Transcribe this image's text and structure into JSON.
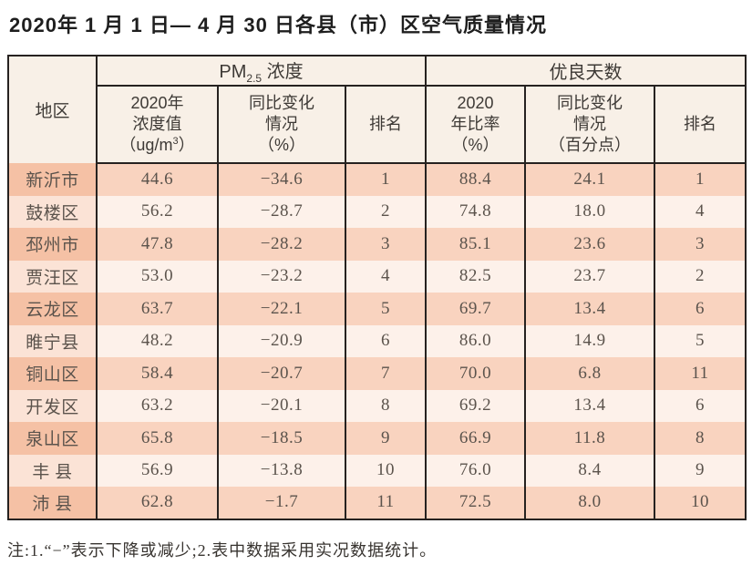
{
  "title": "2020年 1 月 1 日— 4 月 30 日各县（市）区空气质量情况",
  "note": "注:1.“−”表示下降或减少;2.表中数据采用实况数据统计。",
  "colors": {
    "border": "#262220",
    "header_bg": "#f8f0e7",
    "row_odd_region": "#f5c1a5",
    "row_odd": "#f9d3bf",
    "row_even_region": "#fbe3d6",
    "row_even": "#fdf1ea",
    "text_data": "#5b534c",
    "text_header": "#3e3a36",
    "text_title": "#1e1e1e",
    "text_note": "#383430"
  },
  "chart_data": {
    "type": "table",
    "title": "2020年1月1日—4月30日各县（市）区空气质量情况",
    "column_groups": [
      "地区",
      "PM2.5 浓度",
      "优良天数"
    ],
    "columns": [
      "地区",
      "2020年浓度值（ug/m3）",
      "同比变化情况（%）",
      "排名",
      "2020年比率（%）",
      "同比变化情况（百分点）",
      "排名"
    ],
    "rows": [
      [
        "新沂市",
        44.6,
        -34.6,
        1,
        88.4,
        24.1,
        1
      ],
      [
        "鼓楼区",
        56.2,
        -28.7,
        2,
        74.8,
        18.0,
        4
      ],
      [
        "邳州市",
        47.8,
        -28.2,
        3,
        85.1,
        23.6,
        3
      ],
      [
        "贾汪区",
        53.0,
        -23.2,
        4,
        82.5,
        23.7,
        2
      ],
      [
        "云龙区",
        63.7,
        -22.1,
        5,
        69.7,
        13.4,
        6
      ],
      [
        "睢宁县",
        48.2,
        -20.9,
        6,
        86.0,
        14.9,
        5
      ],
      [
        "铜山区",
        58.4,
        -20.7,
        7,
        70.0,
        6.8,
        11
      ],
      [
        "开发区",
        63.2,
        -20.1,
        8,
        69.2,
        13.4,
        6
      ],
      [
        "泉山区",
        65.8,
        -18.5,
        9,
        66.9,
        11.8,
        8
      ],
      [
        "丰县",
        56.9,
        -13.8,
        10,
        76.0,
        8.4,
        9
      ],
      [
        "沛县",
        62.8,
        -1.7,
        11,
        72.5,
        8.0,
        10
      ]
    ]
  },
  "table": {
    "header": {
      "region": "地区",
      "pm25_group": {
        "text": "PM",
        "sub": "2.5",
        "suffix": " 浓度"
      },
      "good_days_group": "优良天数",
      "pm25_value": {
        "l1": "2020年",
        "l2": "浓度值",
        "l3a": "（ug/m",
        "l3b": "3",
        "l3c": "）"
      },
      "pm25_change": {
        "l1": "同比变化",
        "l2": "情况",
        "l3": "（%）"
      },
      "pm25_rank": "排名",
      "rate": {
        "l1": "2020",
        "l2": "年比率",
        "l3": "（%）"
      },
      "rate_change": {
        "l1": "同比变化",
        "l2": "情况",
        "l3": "（百分点）"
      },
      "rate_rank": "排名"
    },
    "cell_names": [
      "region-cell",
      "pm25-value-cell",
      "pm25-change-cell",
      "pm25-rank-cell",
      "good-days-rate-cell",
      "good-days-change-cell",
      "good-days-rank-cell"
    ],
    "rows": [
      [
        "新沂市",
        "44.6",
        "−34.6",
        "1",
        "88.4",
        "24.1",
        "1"
      ],
      [
        "鼓楼区",
        "56.2",
        "−28.7",
        "2",
        "74.8",
        "18.0",
        "4"
      ],
      [
        "邳州市",
        "47.8",
        "−28.2",
        "3",
        "85.1",
        "23.6",
        "3"
      ],
      [
        "贾汪区",
        "53.0",
        "−23.2",
        "4",
        "82.5",
        "23.7",
        "2"
      ],
      [
        "云龙区",
        "63.7",
        "−22.1",
        "5",
        "69.7",
        "13.4",
        "6"
      ],
      [
        "睢宁县",
        "48.2",
        "−20.9",
        "6",
        "86.0",
        "14.9",
        "5"
      ],
      [
        "铜山区",
        "58.4",
        "−20.7",
        "7",
        "70.0",
        "6.8",
        "11"
      ],
      [
        "开发区",
        "63.2",
        "−20.1",
        "8",
        "69.2",
        "13.4",
        "6"
      ],
      [
        "泉山区",
        "65.8",
        "−18.5",
        "9",
        "66.9",
        "11.8",
        "8"
      ],
      [
        "丰 县",
        "56.9",
        "−13.8",
        "10",
        "76.0",
        "8.4",
        "9"
      ],
      [
        "沛 县",
        "62.8",
        "−1.7",
        "11",
        "72.5",
        "8.0",
        "10"
      ]
    ]
  }
}
